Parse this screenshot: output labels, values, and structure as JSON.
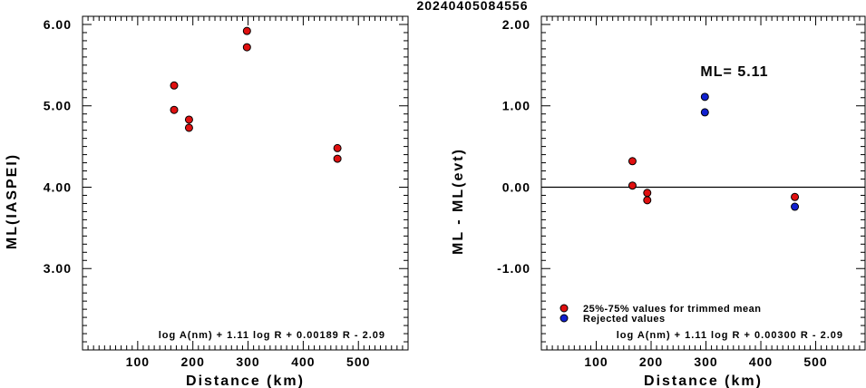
{
  "title": "20240405084556",
  "chart_data": [
    {
      "type": "scatter",
      "xlabel": "Distance (km)",
      "ylabel": "ML(IASPEI)",
      "xlim": [
        0,
        590
      ],
      "ylim": [
        2.0,
        6.1
      ],
      "xticks": [
        "100",
        "200",
        "300",
        "400",
        "500"
      ],
      "yticks": [
        "3.00",
        "4.00",
        "5.00",
        "6.00"
      ],
      "formula": "log A(nm) + 1.11 log R + 0.00189 R - 2.09",
      "series": [
        {
          "color": "#e01010",
          "points": [
            [
              166,
              5.25
            ],
            [
              166,
              4.95
            ],
            [
              193,
              4.83
            ],
            [
              193,
              4.73
            ],
            [
              298,
              5.92
            ],
            [
              298,
              5.72
            ],
            [
              462,
              4.48
            ],
            [
              462,
              4.35
            ]
          ]
        }
      ]
    },
    {
      "type": "scatter",
      "xlabel": "Distance (km)",
      "ylabel": "ML - ML(evt)",
      "xlim": [
        0,
        590
      ],
      "ylim": [
        -2.0,
        2.1
      ],
      "xticks": [
        "100",
        "200",
        "300",
        "400",
        "500"
      ],
      "yticks": [
        "-1.00",
        "0.00",
        "1.00",
        "2.00"
      ],
      "zero_line": true,
      "annotation": "ML= 5.11",
      "formula": "log A(nm) + 1.11 log R + 0.00300 R - 2.09",
      "legend": [
        {
          "label": "25%-75% values for trimmed mean",
          "color": "#e01010"
        },
        {
          "label": "Rejected values",
          "color": "#1020d0"
        }
      ],
      "series": [
        {
          "name": "25%-75% values for trimmed mean",
          "color": "#e01010",
          "points": [
            [
              166,
              0.32
            ],
            [
              166,
              0.02
            ],
            [
              193,
              -0.07
            ],
            [
              193,
              -0.16
            ],
            [
              462,
              -0.12
            ]
          ]
        },
        {
          "name": "Rejected values",
          "color": "#1020d0",
          "points": [
            [
              298,
              1.11
            ],
            [
              298,
              0.92
            ],
            [
              462,
              -0.24
            ]
          ]
        }
      ]
    }
  ]
}
